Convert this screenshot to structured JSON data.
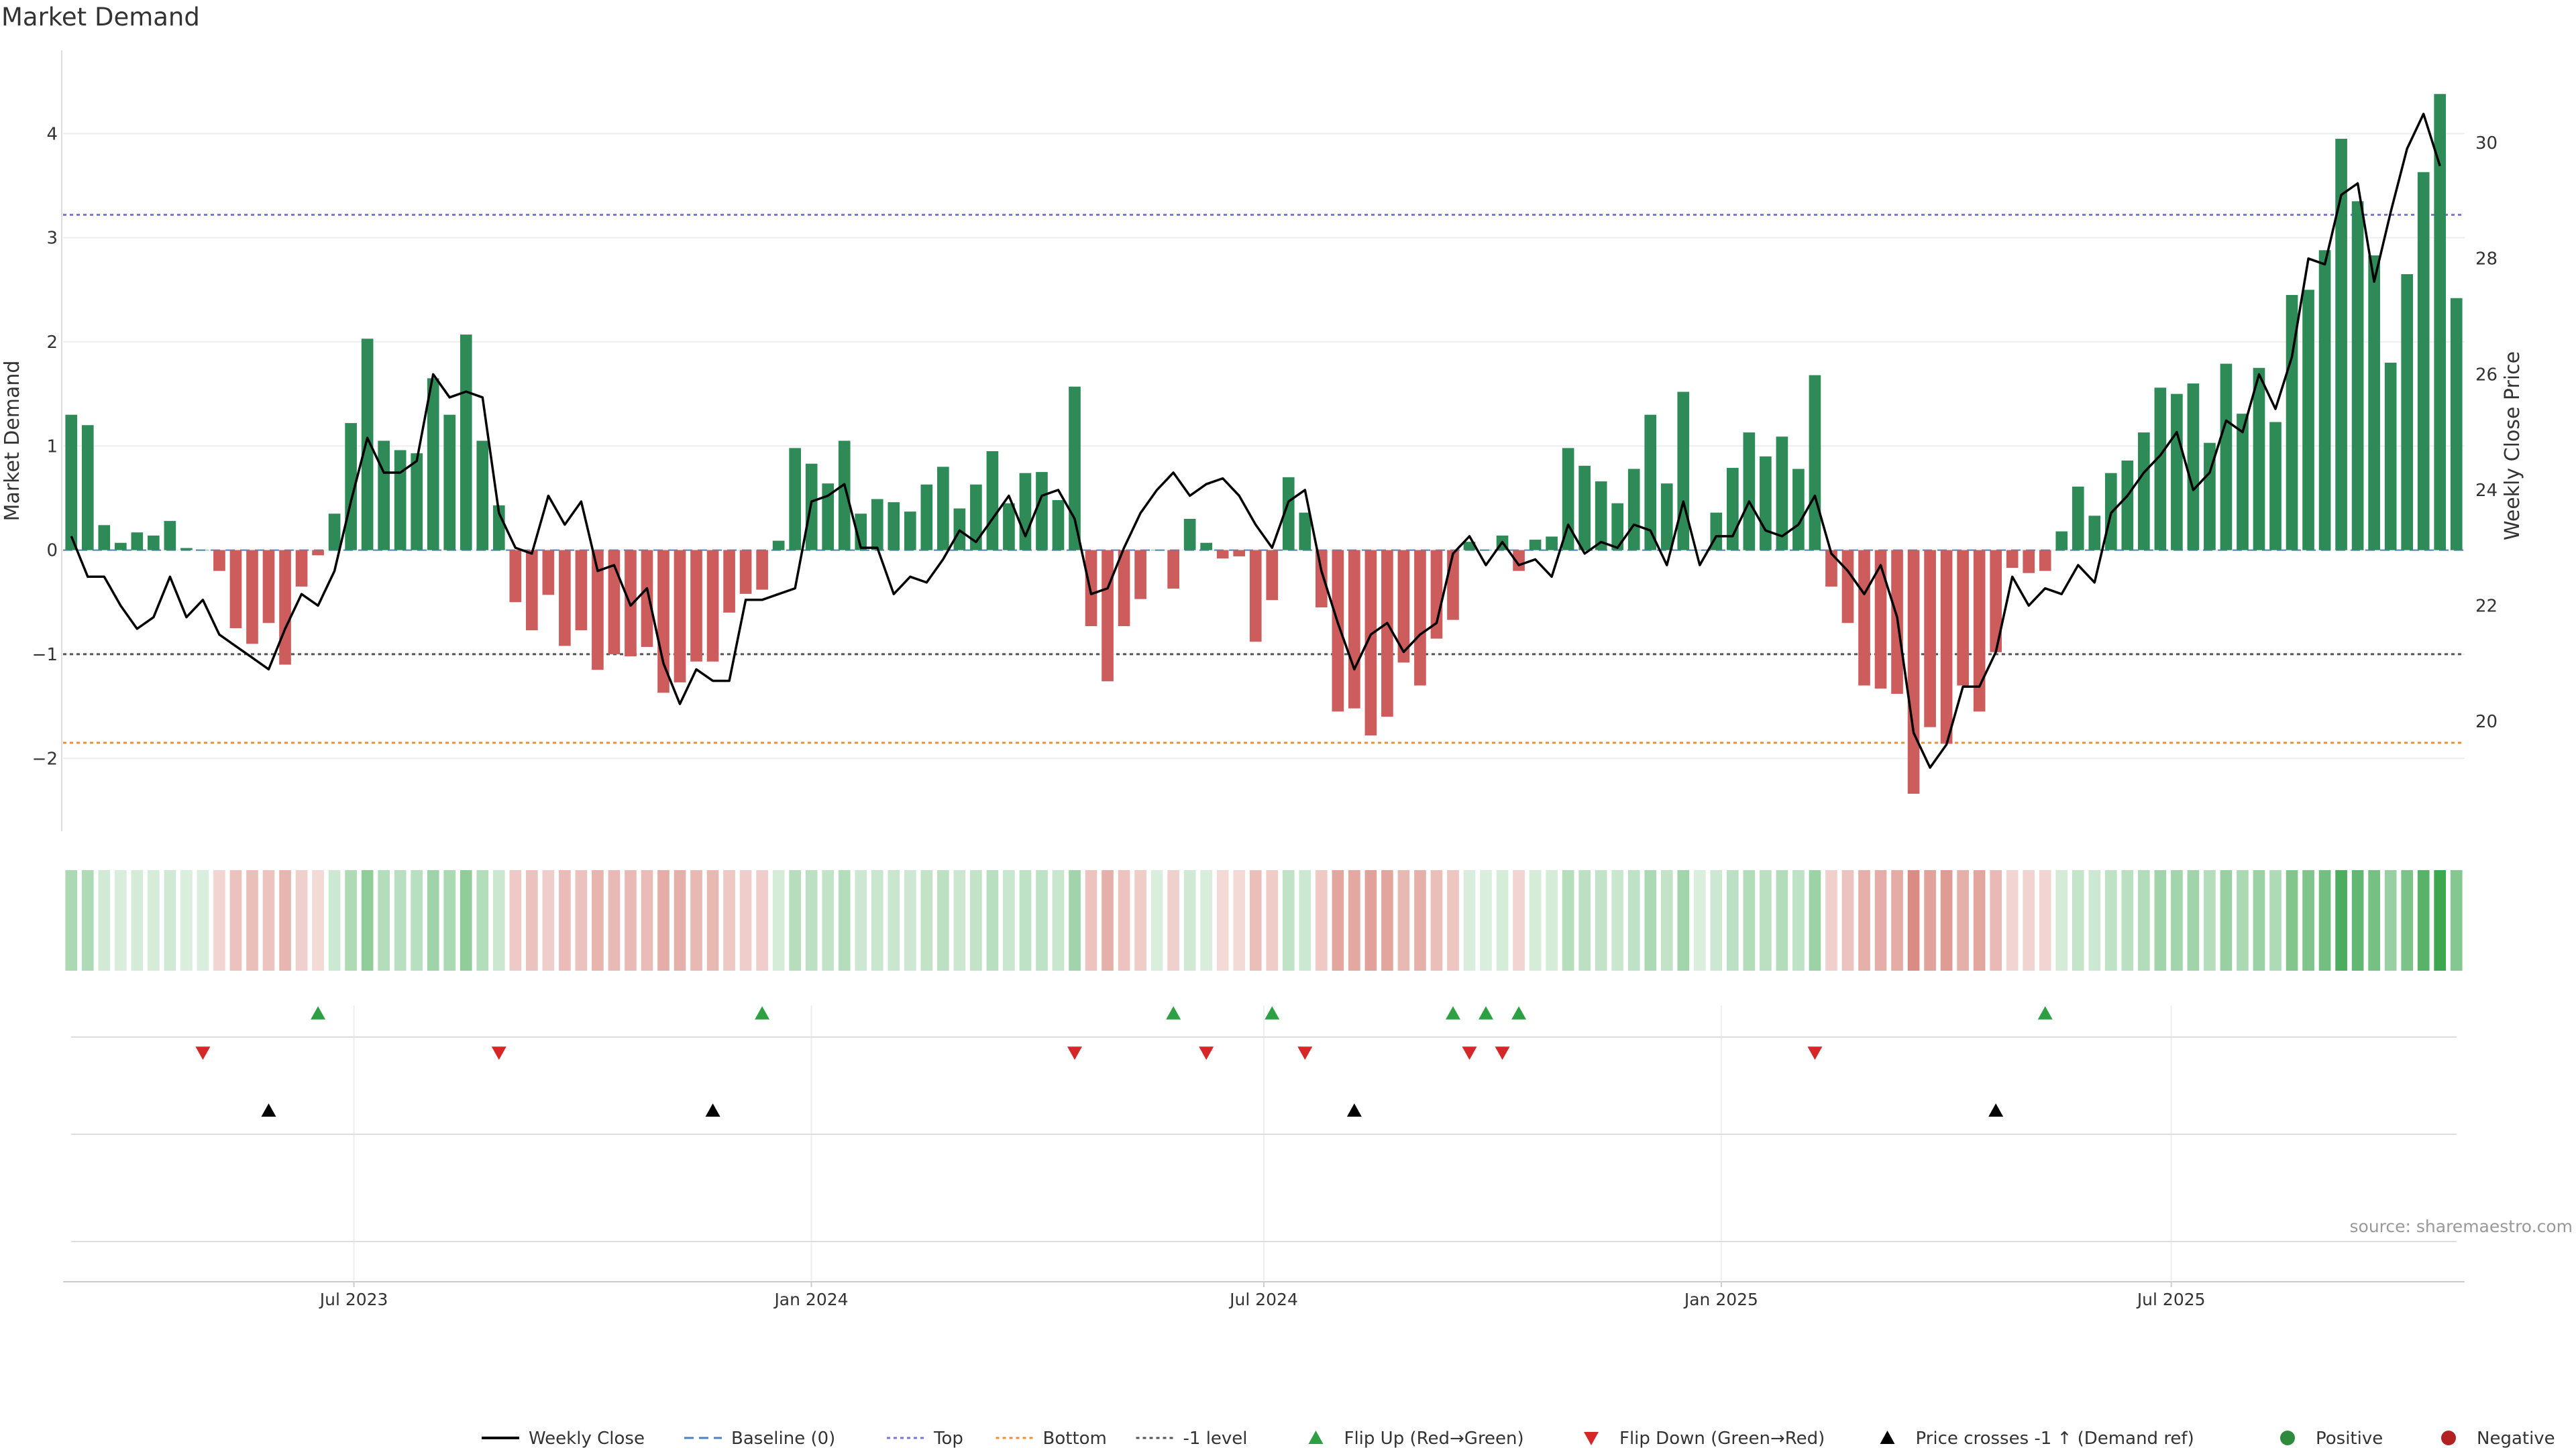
{
  "chart_data": {
    "type": "bar",
    "title": "Market Demand",
    "ylabel": "Market Demand",
    "y2label": "Weekly Close Price",
    "ylim": [
      -2.7,
      4.8
    ],
    "y2lim": [
      18.1,
      31.6
    ],
    "yticks": [
      -2,
      -1,
      0,
      1,
      2,
      3,
      4
    ],
    "y2ticks": [
      20,
      22,
      24,
      26,
      28,
      30
    ],
    "x_start": "2023-03-06",
    "x_end": "2025-10-27",
    "xticks": [
      {
        "label": "Jul 2023",
        "date": "2023-07-01"
      },
      {
        "label": "Jan 2024",
        "date": "2024-01-01"
      },
      {
        "label": "Jul 2024",
        "date": "2024-07-01"
      },
      {
        "label": "Jan 2025",
        "date": "2025-01-01"
      },
      {
        "label": "Jul 2025",
        "date": "2025-07-01"
      }
    ],
    "reference_lines": [
      {
        "name": "Top",
        "value": 3.22,
        "color": "#7777cc"
      },
      {
        "name": "Bottom",
        "value": -1.85,
        "color": "#e69138"
      },
      {
        "name": "-1 level",
        "value": -1.0,
        "color": "#555555"
      },
      {
        "name": "Baseline (0)",
        "value": 0,
        "color": "#4f81bd"
      }
    ],
    "demand": [
      1.3,
      1.2,
      0.24,
      0.07,
      0.17,
      0.14,
      0.28,
      0.02,
      0.0,
      -0.2,
      -0.75,
      -0.9,
      -0.7,
      -1.1,
      -0.35,
      -0.05,
      0.35,
      1.22,
      2.03,
      1.05,
      0.96,
      0.93,
      1.65,
      1.3,
      2.07,
      1.05,
      0.43,
      -0.5,
      -0.77,
      -0.43,
      -0.92,
      -0.77,
      -1.15,
      -1.0,
      -1.02,
      -0.93,
      -1.37,
      -1.27,
      -1.07,
      -1.07,
      -0.6,
      -0.42,
      -0.38,
      0.09,
      0.98,
      0.83,
      0.64,
      1.05,
      0.35,
      0.49,
      0.46,
      0.37,
      0.63,
      0.8,
      0.4,
      0.63,
      0.95,
      0.45,
      0.74,
      0.75,
      0.48,
      1.57,
      -0.73,
      -1.26,
      -0.73,
      -0.47,
      0.0,
      -0.37,
      0.3,
      0.07,
      -0.08,
      -0.06,
      -0.88,
      -0.48,
      0.7,
      0.36,
      -0.55,
      -1.55,
      -1.52,
      -1.78,
      -1.6,
      -1.08,
      -1.3,
      -0.85,
      -0.67,
      0.08,
      0.0,
      0.14,
      -0.2,
      0.1,
      0.13,
      0.98,
      0.81,
      0.66,
      0.45,
      0.78,
      1.3,
      0.64,
      1.52,
      0.0,
      0.36,
      0.79,
      1.13,
      0.9,
      1.09,
      0.78,
      1.68,
      -0.35,
      -0.7,
      -1.3,
      -1.33,
      -1.38,
      -2.34,
      -1.7,
      -1.86,
      -1.3,
      -1.55,
      -0.98,
      -0.17,
      -0.22,
      -0.2,
      0.18,
      0.61,
      0.33,
      0.74,
      0.86,
      1.13,
      1.56,
      1.5,
      1.6,
      1.03,
      1.79,
      1.31,
      1.75,
      1.23,
      2.45,
      2.5,
      2.88,
      3.95,
      3.35,
      2.83,
      1.8,
      2.65,
      3.63,
      4.38,
      2.42
    ],
    "price": [
      23.2,
      22.5,
      22.5,
      22.0,
      21.6,
      21.8,
      22.5,
      21.8,
      22.1,
      21.5,
      21.3,
      21.1,
      20.9,
      21.6,
      22.2,
      22.0,
      22.6,
      23.8,
      24.9,
      24.3,
      24.3,
      24.5,
      26.0,
      25.6,
      25.7,
      25.6,
      23.6,
      23.0,
      22.9,
      23.9,
      23.4,
      23.8,
      22.6,
      22.7,
      22.0,
      22.3,
      21.0,
      20.3,
      20.9,
      20.7,
      20.7,
      22.1,
      22.1,
      22.2,
      22.3,
      23.8,
      23.9,
      24.1,
      23.0,
      23.0,
      22.2,
      22.5,
      22.4,
      22.8,
      23.3,
      23.1,
      23.5,
      23.9,
      23.2,
      23.9,
      24.0,
      23.5,
      22.2,
      22.3,
      23.0,
      23.6,
      24.0,
      24.3,
      23.9,
      24.1,
      24.2,
      23.9,
      23.4,
      23.0,
      23.8,
      24.0,
      22.6,
      21.7,
      20.9,
      21.5,
      21.7,
      21.2,
      21.5,
      21.7,
      22.9,
      23.2,
      22.7,
      23.1,
      22.7,
      22.8,
      22.5,
      23.4,
      22.9,
      23.1,
      23.0,
      23.4,
      23.3,
      22.7,
      23.8,
      22.7,
      23.2,
      23.2,
      23.8,
      23.3,
      23.2,
      23.4,
      23.9,
      22.9,
      22.6,
      22.2,
      22.7,
      21.8,
      19.8,
      19.2,
      19.6,
      20.6,
      20.6,
      21.2,
      22.5,
      22.0,
      22.3,
      22.2,
      22.7,
      22.4,
      23.6,
      23.9,
      24.3,
      24.6,
      25.0,
      24.0,
      24.3,
      25.2,
      25.0,
      26.0,
      25.4,
      26.3,
      28.0,
      27.9,
      29.1,
      29.3,
      27.6,
      28.8,
      29.9,
      30.5,
      29.6
    ],
    "flip_up_weeks": [
      15,
      42,
      67,
      73,
      84,
      86,
      88,
      120
    ],
    "flip_down_weeks": [
      8,
      26,
      61,
      69,
      75,
      85,
      87,
      106
    ],
    "price_cross_weeks": [
      12,
      39,
      78,
      117
    ],
    "legend": [
      {
        "label": "Weekly Close",
        "kind": "line",
        "color": "#000000"
      },
      {
        "label": "Baseline (0)",
        "kind": "dashed",
        "color": "#4f81bd"
      },
      {
        "label": "Top",
        "kind": "dotted",
        "color": "#7777cc"
      },
      {
        "label": "Bottom",
        "kind": "dotted",
        "color": "#e69138"
      },
      {
        "label": "-1 level",
        "kind": "dotted",
        "color": "#555555"
      },
      {
        "label": "Flip Up (Red→Green)",
        "kind": "tri-up",
        "color": "#2ea043"
      },
      {
        "label": "Flip Down (Green→Red)",
        "kind": "tri-down",
        "color": "#d62728"
      },
      {
        "label": "Price crosses -1 ↑ (Demand ref)",
        "kind": "tri-up",
        "color": "#000000"
      },
      {
        "label": "Positive",
        "kind": "dot",
        "color": "#2e8b3e"
      },
      {
        "label": "Negative",
        "kind": "dot",
        "color": "#b22222"
      }
    ]
  },
  "colors": {
    "positive": "#2e8b57",
    "negative": "#cd5c5c",
    "price": "#000000",
    "grid": "#eeeeee"
  },
  "source": "source: sharemaestro.com"
}
